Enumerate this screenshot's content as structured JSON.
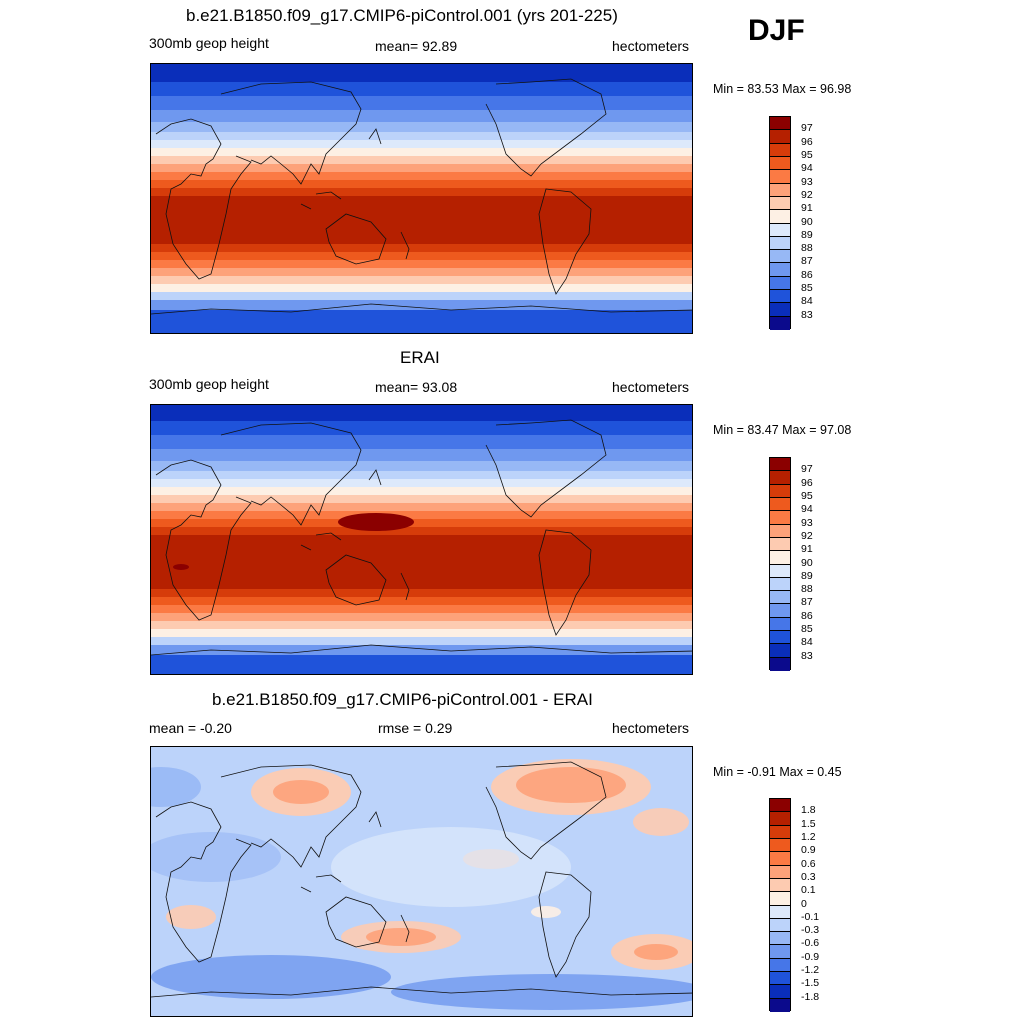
{
  "season": "DJF",
  "panels": [
    {
      "title": "b.e21.B1850.f09_g17.CMIP6-piControl.001 (yrs 201-225)",
      "left_label": "300mb geop height",
      "center_label": "mean=  92.89",
      "units": "hectometers",
      "minmax": "Min =  83.53 Max =  96.98",
      "colorbar_labels": [
        "97",
        "96",
        "95",
        "94",
        "93",
        "92",
        "91",
        "90",
        "89",
        "88",
        "87",
        "86",
        "85",
        "84",
        "83"
      ],
      "field": "model"
    },
    {
      "title": "ERAI",
      "left_label": "300mb geop height",
      "center_label": "mean=  93.08",
      "units": "hectometers",
      "minmax": "Min =  83.47 Max =  97.08",
      "colorbar_labels": [
        "97",
        "96",
        "95",
        "94",
        "93",
        "92",
        "91",
        "90",
        "89",
        "88",
        "87",
        "86",
        "85",
        "84",
        "83"
      ],
      "field": "obs"
    },
    {
      "title": "b.e21.B1850.f09_g17.CMIP6-piControl.001 - ERAI",
      "left_label": "mean =  -0.20",
      "center_label": "rmse =   0.29",
      "units": "hectometers",
      "minmax": "Min =  -0.91 Max =   0.45",
      "colorbar_labels": [
        "1.8",
        "1.5",
        "1.2",
        "0.9",
        "0.6",
        "0.3",
        "0.1",
        "0",
        "-0.1",
        "-0.3",
        "-0.6",
        "-0.9",
        "-1.2",
        "-1.5",
        "-1.8"
      ],
      "field": "diff"
    }
  ],
  "colors": {
    "abs_scale": [
      "#8b0000",
      "#b52000",
      "#d63c0a",
      "#ee5a1e",
      "#fb7a44",
      "#fda27a",
      "#fdcbb1",
      "#fdf0e4",
      "#dde9fb",
      "#bcd3fa",
      "#97b8f5",
      "#6f98ef",
      "#4676e8",
      "#1f53da",
      "#0a2eba",
      "#0b0a8c"
    ],
    "diff_scale": [
      "#8b0000",
      "#b52000",
      "#d63c0a",
      "#ee5a1e",
      "#fb7a44",
      "#fda27a",
      "#fdcbb1",
      "#fdf0e4",
      "#dde9fb",
      "#bcd3fa",
      "#97b8f5",
      "#6f98ef",
      "#4676e8",
      "#1f53da",
      "#0a2eba",
      "#0b0a8c"
    ]
  }
}
